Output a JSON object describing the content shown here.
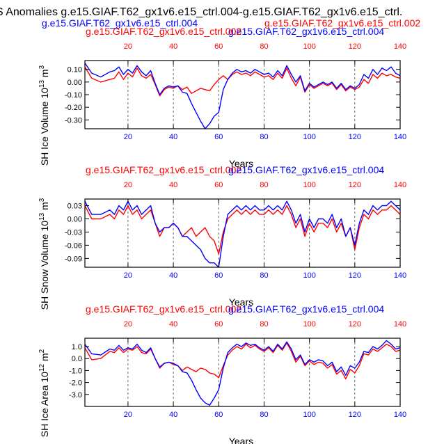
{
  "figure_title": "S Anomalies g.e15.GIAF.T62_gx1v6.e15_ctrl.004-g.e15.GIAF.T62_gx1v6.e15_ctrl.",
  "top_blue_label": "g.e15.GIAF.T62_gx1v6.e15_ctrl.004",
  "top_red_label": "g.e15.GIAF.T62_gx1v6.e15_ctrl.002",
  "colors": {
    "red": "#ff0000",
    "blue": "#0000ff",
    "black": "#000000",
    "grid": "#444444"
  },
  "chart_data": [
    {
      "type": "line",
      "ylabel_main": "SH Ice Volume 10",
      "ylabel_sup": "13",
      "ylabel_tail": " m",
      "ylabel_sup2": "3",
      "xlabel": "Years",
      "red_label": "g.e15.GIAF.T62_gx1v6.e15_ctrl.002",
      "blue_label": "g.e15.GIAF.T62_gx1v6.e15_ctrl.004",
      "xlim": [
        1,
        140
      ],
      "ylim": [
        -0.37,
        0.17
      ],
      "yticks": [
        0.1,
        0.0,
        -0.1,
        -0.2,
        -0.3
      ],
      "ytick_labels": [
        "0.10",
        "0.00",
        "-0.10",
        "-0.20",
        "-0.30"
      ],
      "xticks": [
        20,
        40,
        60,
        80,
        100,
        120,
        140
      ],
      "xtick_labels": [
        "20",
        "40",
        "60",
        "80",
        "100",
        "120",
        "140"
      ],
      "series": [
        {
          "name": "g.e15.GIAF.T62_gx1v6.e15_ctrl.002",
          "color": "red",
          "x": [
            1,
            4,
            8,
            12,
            14,
            16,
            18,
            20,
            22,
            24,
            26,
            28,
            30,
            32,
            34,
            36,
            38,
            40,
            42,
            44,
            46,
            48,
            50,
            52,
            54,
            56,
            58,
            60,
            62,
            64,
            66,
            68,
            70,
            72,
            74,
            76,
            78,
            80,
            82,
            84,
            86,
            88,
            90,
            92,
            94,
            96,
            98,
            100,
            102,
            104,
            106,
            108,
            110,
            112,
            114,
            116,
            118,
            120,
            122,
            124,
            126,
            128,
            130,
            132,
            134,
            136,
            138,
            140
          ],
          "y": [
            0.12,
            0.03,
            0.0,
            0.02,
            0.03,
            0.08,
            0.02,
            0.07,
            0.04,
            0.11,
            0.05,
            0.03,
            0.06,
            -0.02,
            -0.11,
            -0.06,
            -0.04,
            -0.05,
            -0.03,
            -0.06,
            -0.04,
            -0.09,
            -0.07,
            -0.05,
            -0.06,
            -0.07,
            -0.02,
            0.02,
            0.05,
            0.02,
            0.06,
            0.08,
            0.06,
            0.07,
            0.05,
            0.08,
            0.06,
            0.04,
            0.05,
            0.02,
            0.07,
            0.03,
            0.11,
            0.03,
            -0.03,
            0.04,
            -0.08,
            -0.02,
            -0.05,
            -0.03,
            -0.01,
            -0.03,
            -0.01,
            -0.06,
            -0.02,
            -0.07,
            -0.04,
            -0.06,
            -0.04,
            0.02,
            -0.01,
            0.06,
            0.03,
            0.07,
            0.05,
            0.06,
            0.04,
            0.03
          ]
        },
        {
          "name": "g.e15.GIAF.T62_gx1v6.e15_ctrl.004",
          "color": "blue",
          "x": [
            1,
            4,
            8,
            12,
            14,
            16,
            18,
            20,
            22,
            24,
            26,
            28,
            30,
            32,
            34,
            36,
            38,
            40,
            42,
            44,
            46,
            48,
            50,
            52,
            54,
            56,
            58,
            60,
            62,
            64,
            66,
            68,
            70,
            72,
            74,
            76,
            78,
            80,
            82,
            84,
            86,
            88,
            90,
            92,
            94,
            96,
            98,
            100,
            102,
            104,
            106,
            108,
            110,
            112,
            114,
            116,
            118,
            120,
            122,
            124,
            126,
            128,
            130,
            132,
            134,
            136,
            138,
            140
          ],
          "y": [
            0.15,
            0.07,
            0.04,
            0.08,
            0.09,
            0.12,
            0.06,
            0.1,
            0.07,
            0.13,
            0.08,
            0.05,
            0.09,
            -0.01,
            -0.1,
            -0.05,
            -0.03,
            -0.04,
            -0.03,
            -0.08,
            -0.09,
            -0.17,
            -0.24,
            -0.31,
            -0.37,
            -0.33,
            -0.27,
            -0.24,
            -0.06,
            0.02,
            0.07,
            0.1,
            0.08,
            0.09,
            0.07,
            0.1,
            0.08,
            0.06,
            0.07,
            0.04,
            0.09,
            0.05,
            0.13,
            0.06,
            0.0,
            0.05,
            -0.07,
            -0.01,
            -0.04,
            -0.02,
            0.0,
            -0.02,
            0.0,
            -0.05,
            -0.01,
            -0.06,
            -0.03,
            -0.05,
            -0.02,
            0.06,
            0.03,
            0.1,
            0.06,
            0.11,
            0.09,
            0.12,
            0.07,
            0.05
          ]
        }
      ]
    },
    {
      "type": "line",
      "ylabel_main": "SH Snow Volume 10",
      "ylabel_sup": "13",
      "ylabel_tail": " m",
      "ylabel_sup2": "3",
      "xlabel": "Years",
      "red_label": "g.e15.GIAF.T62_gx1v6.e15_ctrl.002",
      "blue_label": "g.e15.GIAF.T62_gx1v6.e15_ctrl.004",
      "xlim": [
        1,
        140
      ],
      "ylim": [
        -0.11,
        0.045
      ],
      "yticks": [
        0.03,
        0.0,
        -0.03,
        -0.06,
        -0.09
      ],
      "ytick_labels": [
        "0.03",
        "0.00",
        "-0.03",
        "-0.06",
        "-0.09"
      ],
      "xticks": [
        20,
        40,
        60,
        80,
        100,
        120,
        140
      ],
      "xtick_labels": [
        "20",
        "40",
        "60",
        "80",
        "100",
        "120",
        "140"
      ],
      "series": [
        {
          "name": "g.e15.GIAF.T62_gx1v6.e15_ctrl.002",
          "color": "red",
          "x": [
            1,
            4,
            8,
            12,
            14,
            16,
            18,
            20,
            22,
            24,
            26,
            28,
            30,
            32,
            34,
            36,
            38,
            40,
            42,
            44,
            46,
            48,
            50,
            52,
            54,
            56,
            58,
            60,
            62,
            64,
            66,
            68,
            70,
            72,
            74,
            76,
            78,
            80,
            82,
            84,
            86,
            88,
            90,
            92,
            94,
            96,
            98,
            100,
            102,
            104,
            106,
            108,
            110,
            112,
            114,
            116,
            118,
            120,
            122,
            124,
            126,
            128,
            130,
            132,
            134,
            136,
            138,
            140
          ],
          "y": [
            0.03,
            0.0,
            0.0,
            0.01,
            0.0,
            0.02,
            0.01,
            0.03,
            0.01,
            0.02,
            0.0,
            0.01,
            0.02,
            -0.01,
            -0.04,
            -0.02,
            -0.02,
            -0.01,
            -0.02,
            -0.04,
            -0.03,
            -0.02,
            -0.04,
            -0.03,
            -0.02,
            -0.04,
            -0.05,
            -0.08,
            -0.03,
            0.0,
            0.01,
            0.02,
            0.01,
            0.02,
            0.01,
            0.02,
            0.01,
            0.01,
            0.02,
            0.01,
            0.02,
            0.01,
            0.03,
            0.01,
            -0.02,
            0.0,
            -0.04,
            -0.01,
            -0.03,
            -0.01,
            -0.01,
            -0.02,
            0.0,
            -0.03,
            -0.01,
            -0.04,
            -0.02,
            -0.07,
            -0.02,
            0.01,
            0.0,
            0.02,
            0.01,
            0.02,
            0.02,
            0.03,
            0.02,
            0.01
          ]
        },
        {
          "name": "g.e15.GIAF.T62_gx1v6.e15_ctrl.004",
          "color": "blue",
          "x": [
            1,
            4,
            8,
            12,
            14,
            16,
            18,
            20,
            22,
            24,
            26,
            28,
            30,
            32,
            34,
            36,
            38,
            40,
            42,
            44,
            46,
            48,
            50,
            52,
            54,
            56,
            58,
            60,
            62,
            64,
            66,
            68,
            70,
            72,
            74,
            76,
            78,
            80,
            82,
            84,
            86,
            88,
            90,
            92,
            94,
            96,
            98,
            100,
            102,
            104,
            106,
            108,
            110,
            112,
            114,
            116,
            118,
            120,
            122,
            124,
            126,
            128,
            130,
            132,
            134,
            136,
            138,
            140
          ],
          "y": [
            0.04,
            0.01,
            0.01,
            0.02,
            0.01,
            0.03,
            0.02,
            0.04,
            0.02,
            0.03,
            0.01,
            0.02,
            0.03,
            -0.01,
            -0.03,
            -0.02,
            -0.02,
            -0.01,
            -0.02,
            -0.04,
            -0.04,
            -0.05,
            -0.06,
            -0.07,
            -0.09,
            -0.1,
            -0.1,
            -0.11,
            -0.04,
            0.01,
            0.02,
            0.03,
            0.02,
            0.03,
            0.02,
            0.03,
            0.02,
            0.02,
            0.03,
            0.02,
            0.03,
            0.02,
            0.04,
            0.02,
            -0.01,
            0.01,
            -0.03,
            0.0,
            -0.02,
            0.0,
            0.0,
            -0.01,
            0.01,
            -0.02,
            0.0,
            -0.04,
            -0.02,
            -0.06,
            -0.01,
            0.02,
            0.01,
            0.03,
            0.02,
            0.03,
            0.03,
            0.04,
            0.03,
            0.02
          ]
        }
      ]
    },
    {
      "type": "line",
      "ylabel_main": "SH Ice Area 10",
      "ylabel_sup": "12",
      "ylabel_tail": " m",
      "ylabel_sup2": "2",
      "xlabel": "Years",
      "red_label": "g.e15.GIAF.T62_gx1v6.e15_ctrl.002",
      "blue_label": "g.e15.GIAF.T62_gx1v6.e15_ctrl.004",
      "xlim": [
        1,
        140
      ],
      "ylim": [
        -4.0,
        1.7
      ],
      "yticks": [
        1.0,
        0.0,
        -1.0,
        -2.0,
        -3.0
      ],
      "ytick_labels": [
        "1.0",
        "0.0",
        "-1.0",
        "-2.0",
        "-3.0"
      ],
      "xticks": [
        20,
        40,
        60,
        80,
        100,
        120,
        140
      ],
      "xtick_labels": [
        "20",
        "40",
        "60",
        "80",
        "100",
        "120",
        "140"
      ],
      "series": [
        {
          "name": "g.e15.GIAF.T62_gx1v6.e15_ctrl.002",
          "color": "red",
          "x": [
            1,
            4,
            8,
            12,
            14,
            16,
            18,
            20,
            22,
            24,
            26,
            28,
            30,
            32,
            34,
            36,
            38,
            40,
            42,
            44,
            46,
            48,
            50,
            52,
            54,
            56,
            58,
            60,
            62,
            64,
            66,
            68,
            70,
            72,
            74,
            76,
            78,
            80,
            82,
            84,
            86,
            88,
            90,
            92,
            94,
            96,
            98,
            100,
            102,
            104,
            106,
            108,
            110,
            112,
            114,
            116,
            118,
            120,
            122,
            124,
            126,
            128,
            130,
            132,
            134,
            136,
            138,
            140
          ],
          "y": [
            0.9,
            -0.1,
            0.0,
            0.6,
            0.5,
            0.9,
            0.5,
            0.8,
            0.7,
            1.0,
            0.5,
            0.4,
            0.8,
            0.0,
            -0.8,
            -0.4,
            -0.3,
            -0.5,
            -0.6,
            -1.0,
            -0.7,
            -0.9,
            -1.1,
            -0.8,
            -0.9,
            -1.2,
            -1.3,
            -1.6,
            -0.6,
            0.3,
            0.7,
            1.0,
            0.8,
            1.2,
            0.9,
            1.1,
            0.8,
            0.6,
            0.9,
            0.5,
            1.1,
            0.7,
            1.3,
            0.6,
            -0.3,
            0.2,
            -0.6,
            -0.2,
            -0.5,
            -0.3,
            -0.4,
            -0.8,
            -0.5,
            -1.3,
            -1.0,
            -1.7,
            -0.9,
            -1.2,
            -0.6,
            0.4,
            0.3,
            0.8,
            0.6,
            0.9,
            1.2,
            1.0,
            0.6,
            0.7
          ]
        },
        {
          "name": "g.e15.GIAF.T62_gx1v6.e15_ctrl.004",
          "color": "blue",
          "x": [
            1,
            4,
            8,
            12,
            14,
            16,
            18,
            20,
            22,
            24,
            26,
            28,
            30,
            32,
            34,
            36,
            38,
            40,
            42,
            44,
            46,
            48,
            50,
            52,
            54,
            56,
            58,
            60,
            62,
            64,
            66,
            68,
            70,
            72,
            74,
            76,
            78,
            80,
            82,
            84,
            86,
            88,
            90,
            92,
            94,
            96,
            98,
            100,
            102,
            104,
            106,
            108,
            110,
            112,
            114,
            116,
            118,
            120,
            122,
            124,
            126,
            128,
            130,
            132,
            134,
            136,
            138,
            140
          ],
          "y": [
            1.2,
            0.4,
            0.3,
            0.8,
            0.7,
            1.1,
            0.7,
            0.9,
            0.8,
            1.2,
            0.7,
            0.5,
            0.9,
            0.0,
            -0.7,
            -0.4,
            -0.3,
            -0.4,
            -0.6,
            -1.1,
            -1.2,
            -1.8,
            -2.6,
            -3.3,
            -3.7,
            -3.9,
            -3.3,
            -2.6,
            -0.8,
            0.5,
            0.9,
            1.2,
            1.0,
            1.3,
            1.1,
            1.2,
            0.9,
            0.7,
            1.0,
            0.6,
            1.2,
            0.8,
            1.4,
            0.8,
            -0.1,
            0.3,
            -0.5,
            -0.1,
            -0.3,
            -0.1,
            -0.2,
            -0.6,
            -0.3,
            -1.1,
            -0.7,
            -1.4,
            -0.6,
            -0.8,
            -0.3,
            0.6,
            0.5,
            1.0,
            0.8,
            1.1,
            1.5,
            1.2,
            0.8,
            0.9
          ]
        }
      ]
    }
  ]
}
